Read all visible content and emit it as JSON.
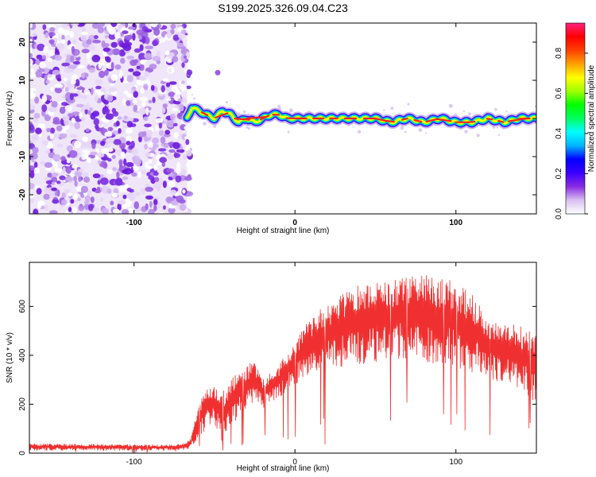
{
  "title": "S199.2025.326.09.04.C23",
  "chart_data": [
    {
      "type": "heatmap",
      "title": "S199.2025.326.09.04.C23",
      "xlabel": "Height of straight line (km)",
      "ylabel": "Frequency (Hz)",
      "xlim": [
        -165,
        150
      ],
      "ylim": [
        -25,
        25
      ],
      "x_ticks": [
        -100,
        0,
        100
      ],
      "y_ticks": [
        -20,
        -10,
        0,
        10,
        20
      ],
      "x_tick_labels": [
        "-100",
        "0",
        "100"
      ],
      "y_tick_labels": [
        "-20",
        "-10",
        "0",
        "10",
        "20"
      ],
      "noise_region_x": [
        -165,
        -67
      ],
      "ridge": {
        "x": [
          -67,
          -64,
          -60,
          -55,
          -50,
          -45,
          -40,
          -35,
          -30,
          -25,
          -20,
          -15,
          -10,
          -5,
          0,
          10,
          20,
          30,
          40,
          50,
          60,
          70,
          80,
          90,
          100,
          110,
          120,
          130,
          140,
          150
        ],
        "freq": [
          0,
          3,
          2,
          1,
          0,
          2,
          1,
          -1,
          0,
          -1,
          0,
          1,
          1,
          0,
          0,
          0,
          0,
          0,
          0,
          0,
          -1,
          0,
          -1,
          0,
          -1,
          -1,
          0,
          -1,
          0,
          0
        ]
      },
      "colorbar": {
        "label": "Normalized spectral amplitude",
        "range": [
          0,
          0.95
        ],
        "ticks": [
          0.0,
          0.2,
          0.4,
          0.6,
          0.8
        ],
        "tick_labels": [
          "0.0",
          "0.2",
          "0.4",
          "0.6",
          "0.8"
        ],
        "stops": [
          "#ffffff",
          "#d8c0f0",
          "#8a2be2",
          "#3a00ff",
          "#0000ff",
          "#00b4ff",
          "#00ffff",
          "#00ff60",
          "#00ff00",
          "#a0ff00",
          "#ffff00",
          "#ffa000",
          "#ff4000",
          "#ff0000",
          "#ff2080"
        ]
      }
    },
    {
      "type": "line",
      "xlabel": "Height of straight line (km)",
      "ylabel": "SNR (10 * v/v)",
      "xlim": [
        -165,
        150
      ],
      "ylim": [
        0,
        780
      ],
      "x_ticks": [
        -100,
        0,
        100
      ],
      "y_ticks": [
        0,
        200,
        400,
        600
      ],
      "x_tick_labels": [
        "-100",
        "0",
        "100"
      ],
      "y_tick_labels": [
        "0",
        "200",
        "400",
        "600"
      ],
      "color": "#f03030",
      "envelope": {
        "x": [
          -165,
          -140,
          -120,
          -100,
          -80,
          -70,
          -65,
          -60,
          -55,
          -50,
          -45,
          -40,
          -35,
          -30,
          -25,
          -20,
          -15,
          -10,
          -5,
          0,
          5,
          10,
          20,
          30,
          40,
          50,
          60,
          70,
          80,
          90,
          100,
          110,
          115,
          120,
          130,
          140,
          150
        ],
        "upper": [
          40,
          38,
          37,
          36,
          35,
          38,
          60,
          200,
          260,
          280,
          250,
          300,
          340,
          360,
          380,
          300,
          330,
          360,
          420,
          450,
          520,
          560,
          610,
          660,
          690,
          700,
          710,
          720,
          730,
          720,
          700,
          650,
          600,
          560,
          540,
          520,
          480
        ],
        "lower": [
          10,
          10,
          10,
          10,
          10,
          12,
          15,
          60,
          100,
          120,
          40,
          100,
          150,
          180,
          200,
          180,
          200,
          220,
          260,
          280,
          300,
          320,
          340,
          350,
          360,
          370,
          380,
          380,
          370,
          360,
          350,
          330,
          320,
          300,
          280,
          260,
          200
        ]
      }
    }
  ]
}
